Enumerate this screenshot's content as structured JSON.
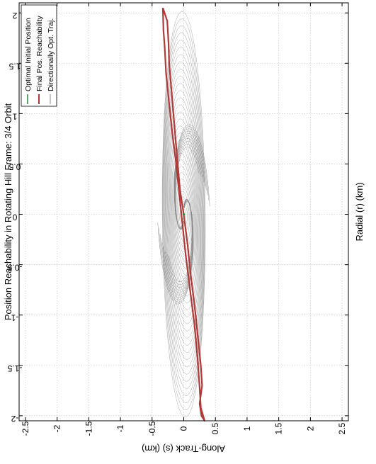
{
  "chart_data": {
    "type": "line",
    "title": "Position Reachability in Rotating Hill Frame: 3/4 Orbit",
    "xlabel": "Along-Track (s) (km)",
    "ylabel": "Radial (r) (km)",
    "grid": true,
    "legend_placement": "top-left",
    "x_range": [
      -2.05,
      2.1
    ],
    "y_range": [
      -2.6,
      2.6
    ],
    "x_ticks": [
      2,
      1.5,
      1,
      0.5,
      0,
      -0.5,
      -1,
      -1.5,
      -2
    ],
    "x_tick_labels": [
      "2",
      "1.5",
      "1",
      "0.5",
      "0",
      "-0.5",
      "-1",
      "-1.5",
      "-2"
    ],
    "y_ticks": [
      -2.5,
      -2,
      -1.5,
      -1,
      -0.5,
      0,
      0.5,
      1,
      1.5,
      2,
      2.5
    ],
    "y_tick_labels": [
      "-2.5",
      "-2",
      "-1.5",
      "-1",
      "-0.5",
      "0",
      "0.5",
      "1",
      "1.5",
      "2",
      "2.5"
    ],
    "series": [
      {
        "name": "Optimal Initial Position",
        "color": "#1f8a2e",
        "x": [
          0
        ],
        "y": [
          0
        ]
      },
      {
        "name": "Final Pos. Reachability",
        "color": "#b03a3a",
        "x": [
          2.05,
          1.92,
          1.7,
          1.5,
          1.2,
          0.9,
          0.6,
          0.25,
          0,
          -0.3,
          -0.6,
          -0.9,
          -1.2,
          -1.5,
          -1.7,
          -1.88,
          -2.0,
          -2.05,
          -1.92,
          -1.72,
          -1.45,
          -1.1,
          -0.75,
          -0.4,
          -0.1,
          0.2,
          0.5,
          0.8,
          1.1,
          1.4,
          1.65,
          1.82,
          2.05
        ],
        "y": [
          -0.33,
          -0.26,
          -0.24,
          -0.23,
          -0.19,
          -0.15,
          -0.11,
          -0.06,
          0.0,
          0.06,
          0.11,
          0.17,
          0.22,
          0.27,
          0.29,
          0.25,
          0.28,
          0.33,
          0.27,
          0.25,
          0.22,
          0.17,
          0.1,
          0.03,
          -0.02,
          -0.07,
          -0.12,
          -0.18,
          -0.23,
          -0.28,
          -0.3,
          -0.32,
          -0.33
        ]
      },
      {
        "name": "Directionally Opt. Traj.",
        "color": "#8a8a8a",
        "x": [],
        "y": []
      }
    ]
  }
}
